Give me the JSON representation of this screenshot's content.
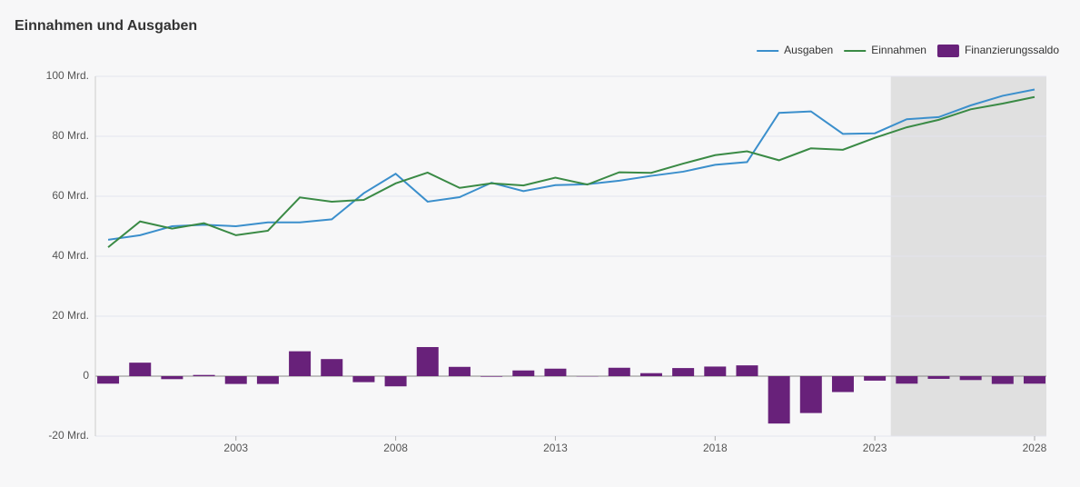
{
  "chart_data": {
    "type": "bar_line",
    "title": "Einnahmen und Ausgaben",
    "x": [
      1999,
      2000,
      2001,
      2002,
      2003,
      2004,
      2005,
      2006,
      2007,
      2008,
      2009,
      2010,
      2011,
      2012,
      2013,
      2014,
      2015,
      2016,
      2017,
      2018,
      2019,
      2020,
      2021,
      2022,
      2023,
      2024,
      2025,
      2026,
      2027,
      2028
    ],
    "series": [
      {
        "name": "Ausgaben",
        "kind": "line",
        "color": "#3b8fcc",
        "values": [
          45.5,
          47,
          50,
          50.5,
          50,
          51.3,
          51.3,
          52.3,
          61,
          67.5,
          58.2,
          59.7,
          64.5,
          61.7,
          63.7,
          64,
          65.2,
          66.8,
          68.2,
          70.5,
          71.4,
          87.8,
          88.3,
          80.8,
          81,
          85.7,
          86.4,
          90.3,
          93.5,
          95.6
        ]
      },
      {
        "name": "Einnahmen",
        "kind": "line",
        "color": "#3a8a45",
        "values": [
          43,
          51.6,
          49.2,
          51,
          47,
          48.5,
          59.6,
          58.2,
          58.8,
          64.3,
          67.9,
          62.8,
          64.3,
          63.6,
          66.2,
          63.9,
          68,
          67.8,
          70.9,
          73.7,
          75,
          72,
          76,
          75.5,
          79.5,
          83,
          85.5,
          89,
          90.9,
          93.1
        ]
      },
      {
        "name": "Finanzierungssaldo",
        "kind": "bar",
        "color": "#68217a",
        "values": [
          -2.5,
          4.5,
          -1,
          0.4,
          -2.6,
          -2.6,
          8.3,
          5.7,
          -2,
          -3.4,
          9.7,
          3.1,
          -0.2,
          1.9,
          2.5,
          -0.1,
          2.8,
          1,
          2.7,
          3.2,
          3.6,
          -15.8,
          -12.3,
          -5.3,
          -1.5,
          -2.5,
          -0.9,
          -1.3,
          -2.6,
          -2.5
        ]
      }
    ],
    "xlim": [
      1998.6,
      2028.37
    ],
    "xticks": [
      2003,
      2008,
      2013,
      2018,
      2023,
      2028
    ],
    "ylim": [
      -20,
      100
    ],
    "yticks": [
      {
        "value": -20,
        "label": "-20 Mrd."
      },
      0,
      {
        "value": 20,
        "label": "20 Mrd."
      },
      {
        "value": 40,
        "label": "40 Mrd."
      },
      {
        "value": 60,
        "label": "60 Mrd."
      },
      {
        "value": 80,
        "label": "80 Mrd."
      },
      {
        "value": 100,
        "label": "100 Mrd."
      }
    ],
    "shaded_xlim": [
      2023.5,
      2028.37
    ],
    "grid": true,
    "legend": "top-right"
  }
}
